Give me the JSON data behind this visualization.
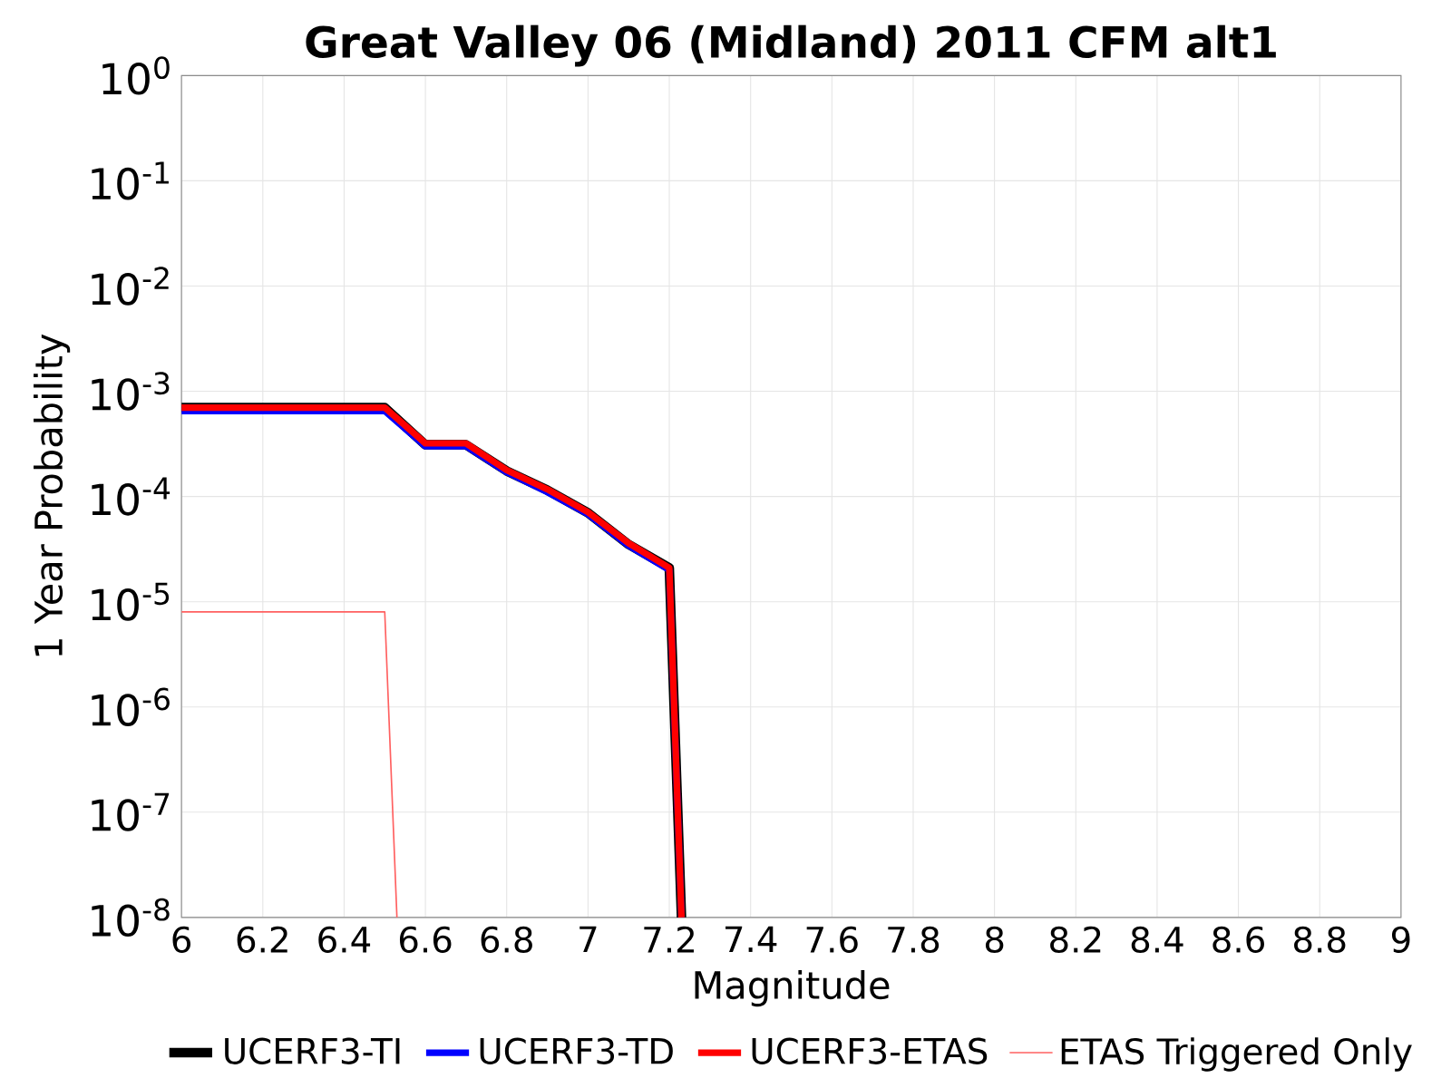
{
  "chart_data": {
    "type": "line",
    "title": "Great Valley 06 (Midland) 2011 CFM alt1",
    "xlabel": "Magnitude",
    "ylabel": "1 Year Probability",
    "series": [
      {
        "name": "UCERF3-TI",
        "color": "#000000",
        "x": [
          6.0,
          6.5,
          6.6,
          6.7,
          6.8,
          6.9,
          7.0,
          7.1,
          7.2,
          7.23
        ],
        "values": [
          0.0007,
          0.0007,
          0.00031,
          0.00031,
          0.000175,
          0.000115,
          7e-05,
          3.5e-05,
          2.1e-05,
          1e-08
        ]
      },
      {
        "name": "UCERF3-TD",
        "color": "#0000ff",
        "x": [
          6.0,
          6.5,
          6.6,
          6.7,
          6.8,
          6.9,
          7.0,
          7.1,
          7.2,
          7.23
        ],
        "values": [
          0.00065,
          0.00065,
          0.0003,
          0.0003,
          0.00017,
          0.00011,
          6.8e-05,
          3.4e-05,
          2e-05,
          1e-08
        ]
      },
      {
        "name": "UCERF3-ETAS",
        "color": "#ff0000",
        "x": [
          6.0,
          6.5,
          6.6,
          6.7,
          6.8,
          6.9,
          7.0,
          7.1,
          7.2,
          7.23
        ],
        "values": [
          0.0007,
          0.0007,
          0.00032,
          0.00032,
          0.000178,
          0.000117,
          7.1e-05,
          3.6e-05,
          2.1e-05,
          1e-08
        ]
      },
      {
        "name": "ETAS Triggered Only",
        "color": "#ff6060",
        "x": [
          6.0,
          6.5,
          6.53
        ],
        "values": [
          8e-06,
          8e-06,
          1e-08
        ]
      }
    ],
    "xlim": [
      6,
      9
    ],
    "ylim": [
      1e-08,
      1
    ],
    "xticks": [
      6,
      6.2,
      6.4,
      6.6,
      6.8,
      7,
      7.2,
      7.4,
      7.6,
      7.8,
      8,
      8.2,
      8.4,
      8.6,
      8.8,
      9
    ],
    "yticks": [
      {
        "value": 1e-08,
        "label": "10$^{-8}$"
      },
      {
        "value": 1e-07,
        "label": "10$^{-7}$"
      },
      {
        "value": 1e-06,
        "label": "10$^{-6}$"
      },
      {
        "value": 1e-05,
        "label": "10$^{-5}$"
      },
      {
        "value": 0.0001,
        "label": "10$^{-4}$"
      },
      {
        "value": 0.001,
        "label": "10$^{-3}$"
      },
      {
        "value": 0.01,
        "label": "10$^{-2}$"
      },
      {
        "value": 0.1,
        "label": "10$^{-1}$"
      },
      {
        "value": 1,
        "label": "10$^{0}$"
      }
    ],
    "log": "y",
    "grid": true,
    "legend": "bottom"
  }
}
